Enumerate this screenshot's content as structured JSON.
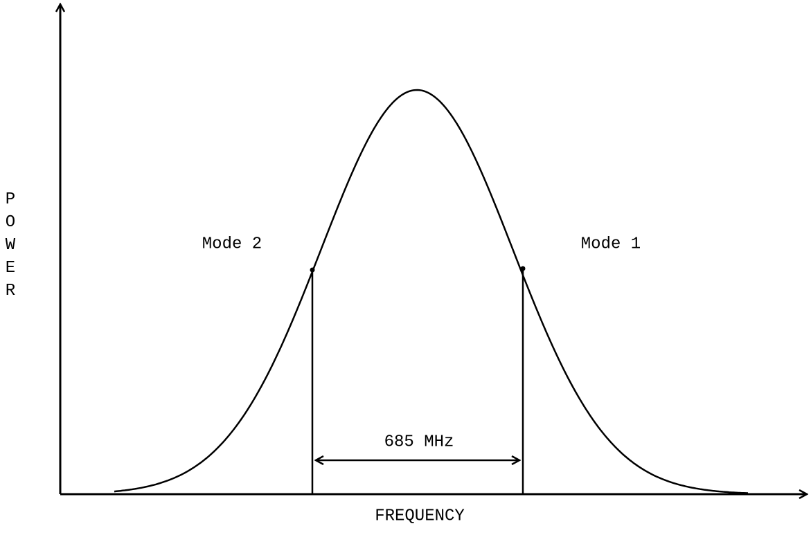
{
  "diagram": {
    "y_axis_label": "POWER",
    "x_axis_label": "FREQUENCY",
    "mode_left": "Mode 2",
    "mode_right": "Mode 1",
    "spacing_label": "685 MHz"
  }
}
